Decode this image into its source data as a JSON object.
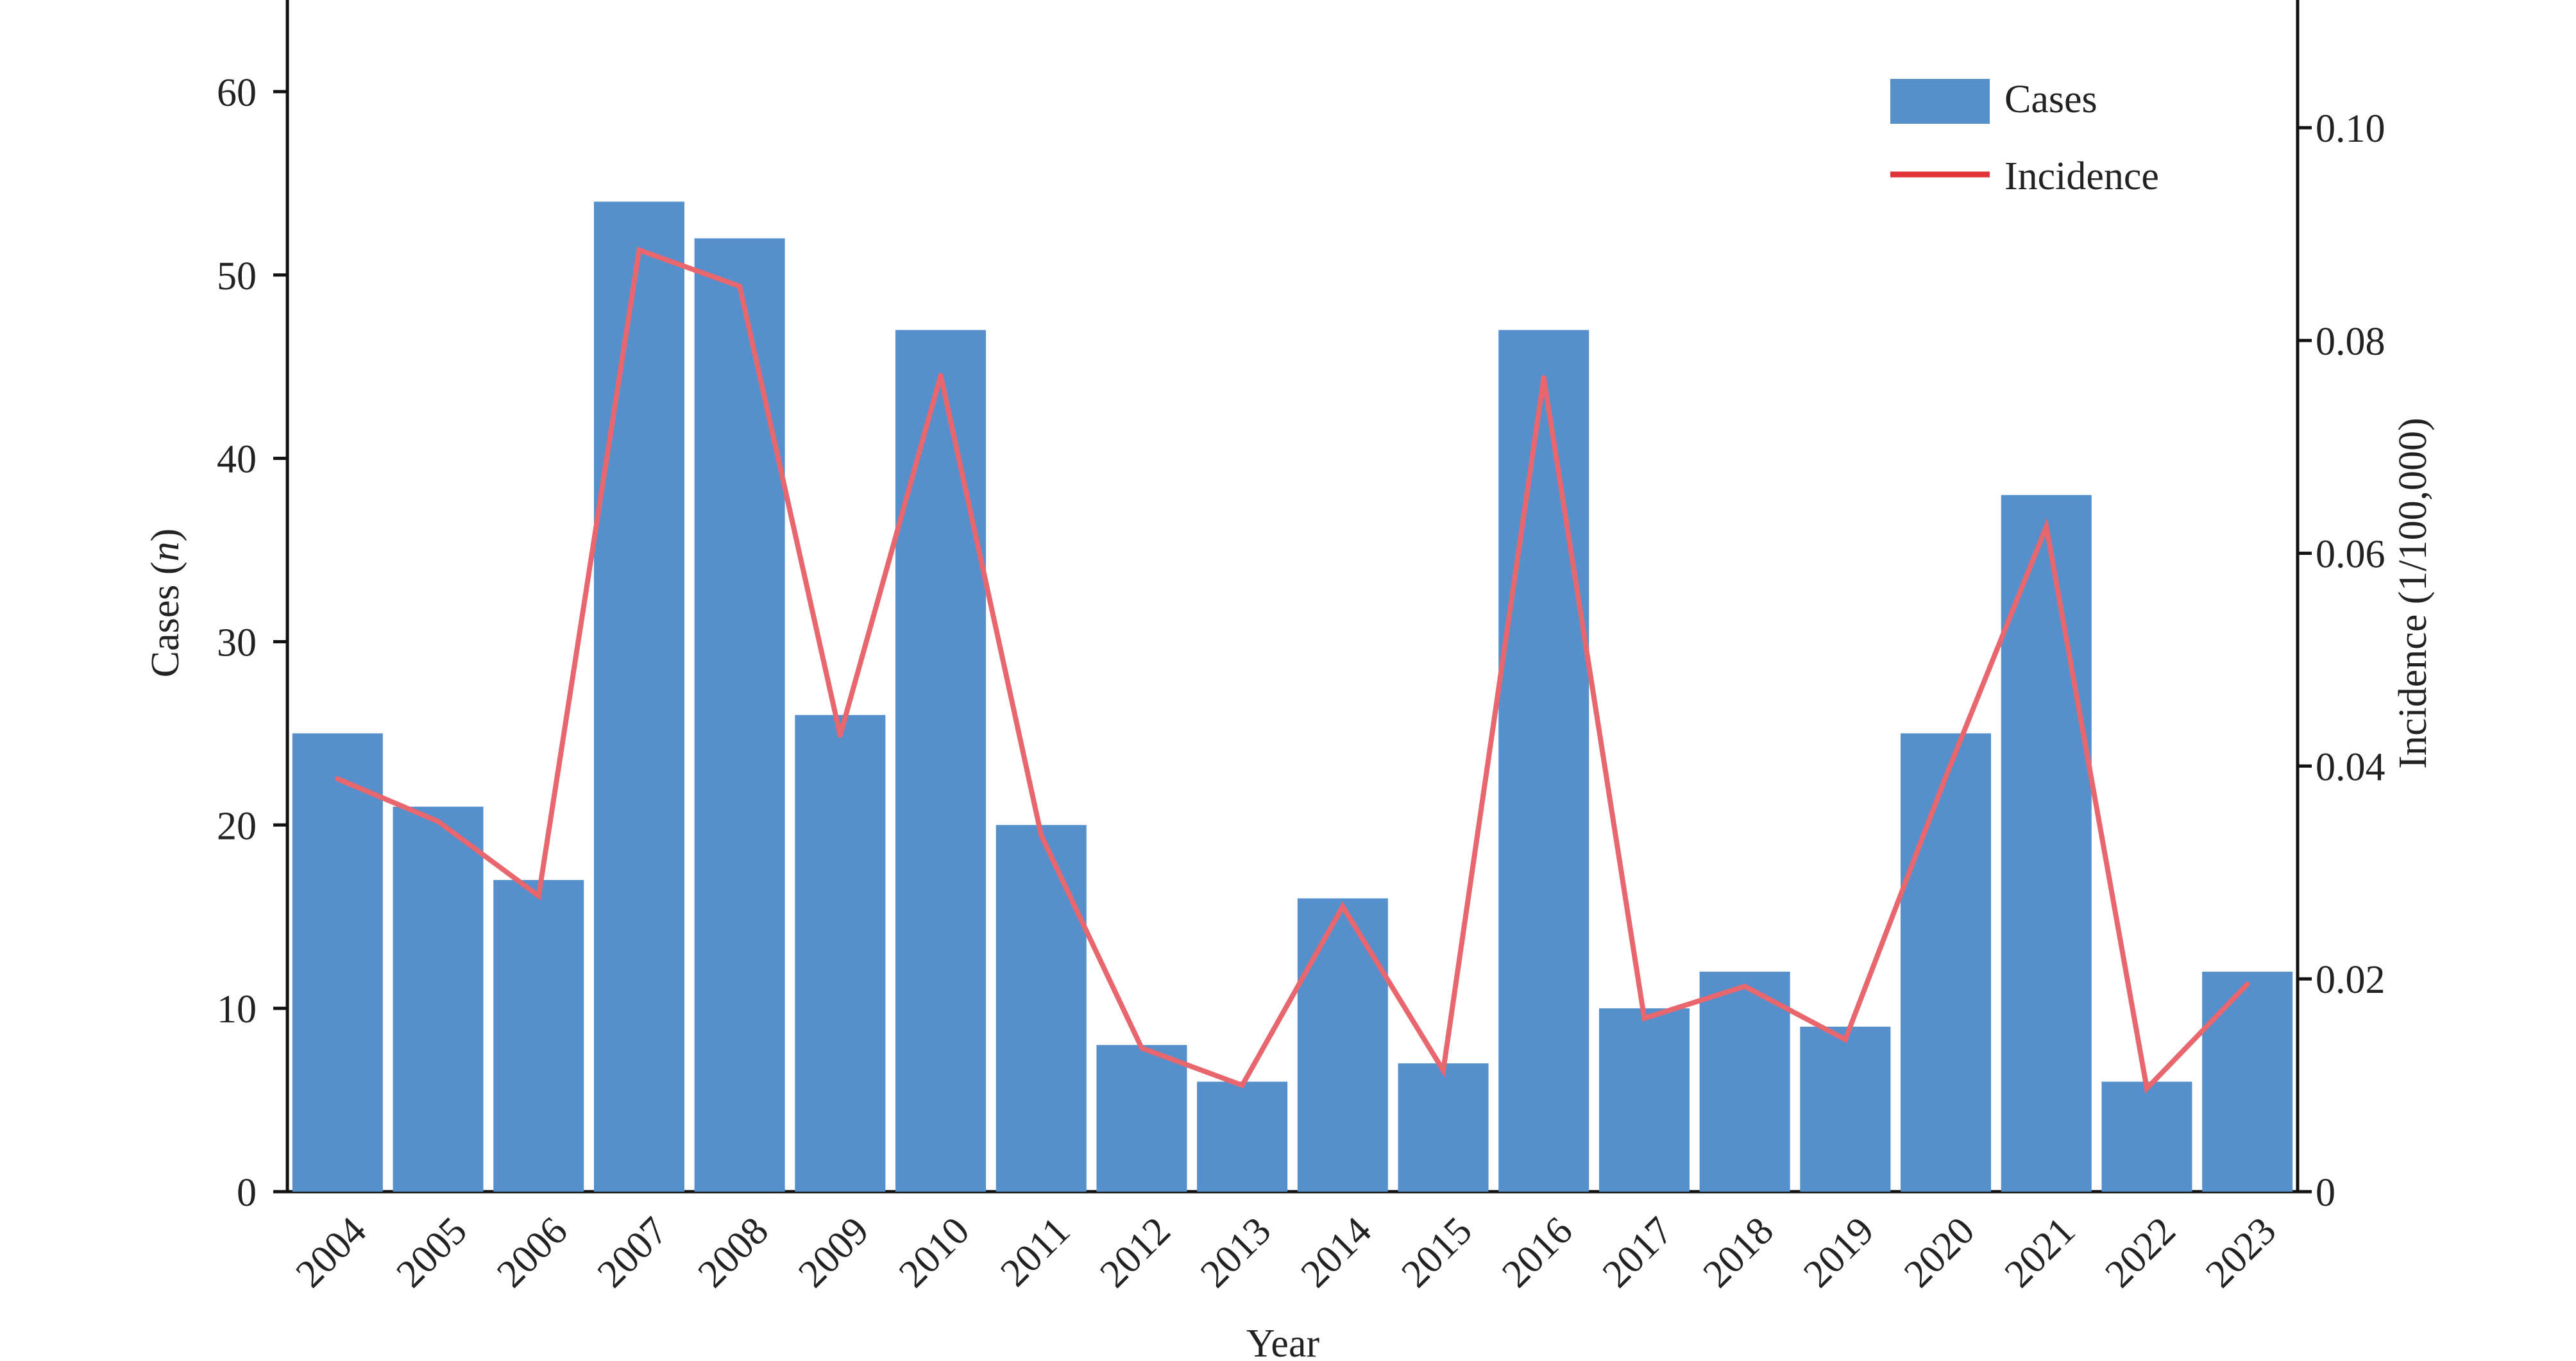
{
  "chart_data": {
    "type": "bar",
    "xlabel": "Year",
    "ylabel_left_prefix": "Cases (",
    "ylabel_left_italic": "n",
    "ylabel_left_suffix": ")",
    "ylabel_right": "Incidence (1/100,000)",
    "categories": [
      "2004",
      "2005",
      "2006",
      "2007",
      "2008",
      "2009",
      "2010",
      "2011",
      "2012",
      "2013",
      "2014",
      "2015",
      "2016",
      "2017",
      "2018",
      "2019",
      "2020",
      "2021",
      "2022",
      "2023"
    ],
    "series": [
      {
        "name": "Cases",
        "type": "bar",
        "axis": "left",
        "color": "#5590cc",
        "values": [
          25,
          21,
          17,
          54,
          52,
          26,
          47,
          20,
          8,
          6,
          16,
          7,
          47,
          10,
          12,
          9,
          25,
          38,
          6,
          12
        ]
      },
      {
        "name": "Incidence",
        "type": "line",
        "axis": "right",
        "color": "#e8676f",
        "values": [
          0.0388,
          0.0348,
          0.0278,
          0.0885,
          0.0851,
          0.0429,
          0.0767,
          0.0335,
          0.0135,
          0.01,
          0.0268,
          0.0114,
          0.0765,
          0.0163,
          0.0193,
          0.0143,
          0.039,
          0.0625,
          0.0097,
          0.0195
        ]
      }
    ],
    "y_left": {
      "min": 0,
      "max": 65,
      "ticks": [
        0,
        10,
        20,
        30,
        40,
        50,
        60
      ]
    },
    "y_right": {
      "min": 0,
      "max": 0.112,
      "ticks": [
        "0",
        "0.02",
        "0.04",
        "0.06",
        "0.08",
        "0.10"
      ]
    },
    "legend": {
      "position": "top-right",
      "entries": [
        "Cases",
        "Incidence"
      ]
    },
    "grid": false
  }
}
